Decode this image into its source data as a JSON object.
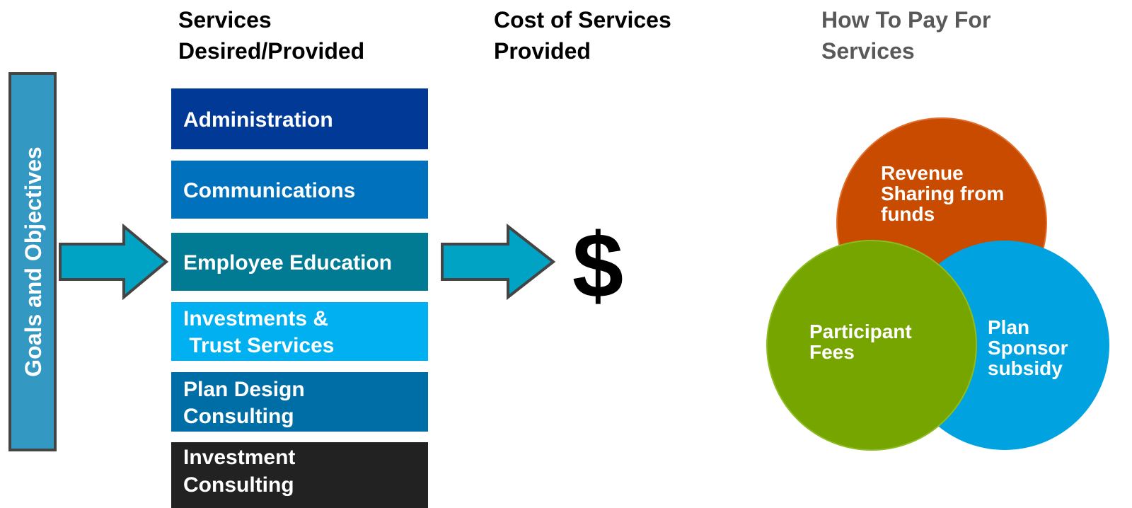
{
  "sidebar": "Goals and Objectives",
  "headers": [
    [
      "Services",
      "Desired/Provided"
    ],
    [
      "Cost of Services",
      "Provided"
    ],
    [
      "How To Pay For",
      "Services"
    ]
  ],
  "services": [
    [
      "Administration"
    ],
    [
      "Communications"
    ],
    [
      "Employee Education"
    ],
    [
      "Investments &",
      " Trust Services"
    ],
    [
      "Plan Design",
      "Consulting"
    ],
    [
      "Investment",
      "Consulting"
    ]
  ],
  "cost_symbol": "$",
  "payment_sources": [
    [
      "Revenue",
      "Sharing from",
      "funds"
    ],
    [
      "Participant",
      "Fees"
    ],
    [
      "Plan",
      "Sponsor",
      "subsidy"
    ]
  ]
}
